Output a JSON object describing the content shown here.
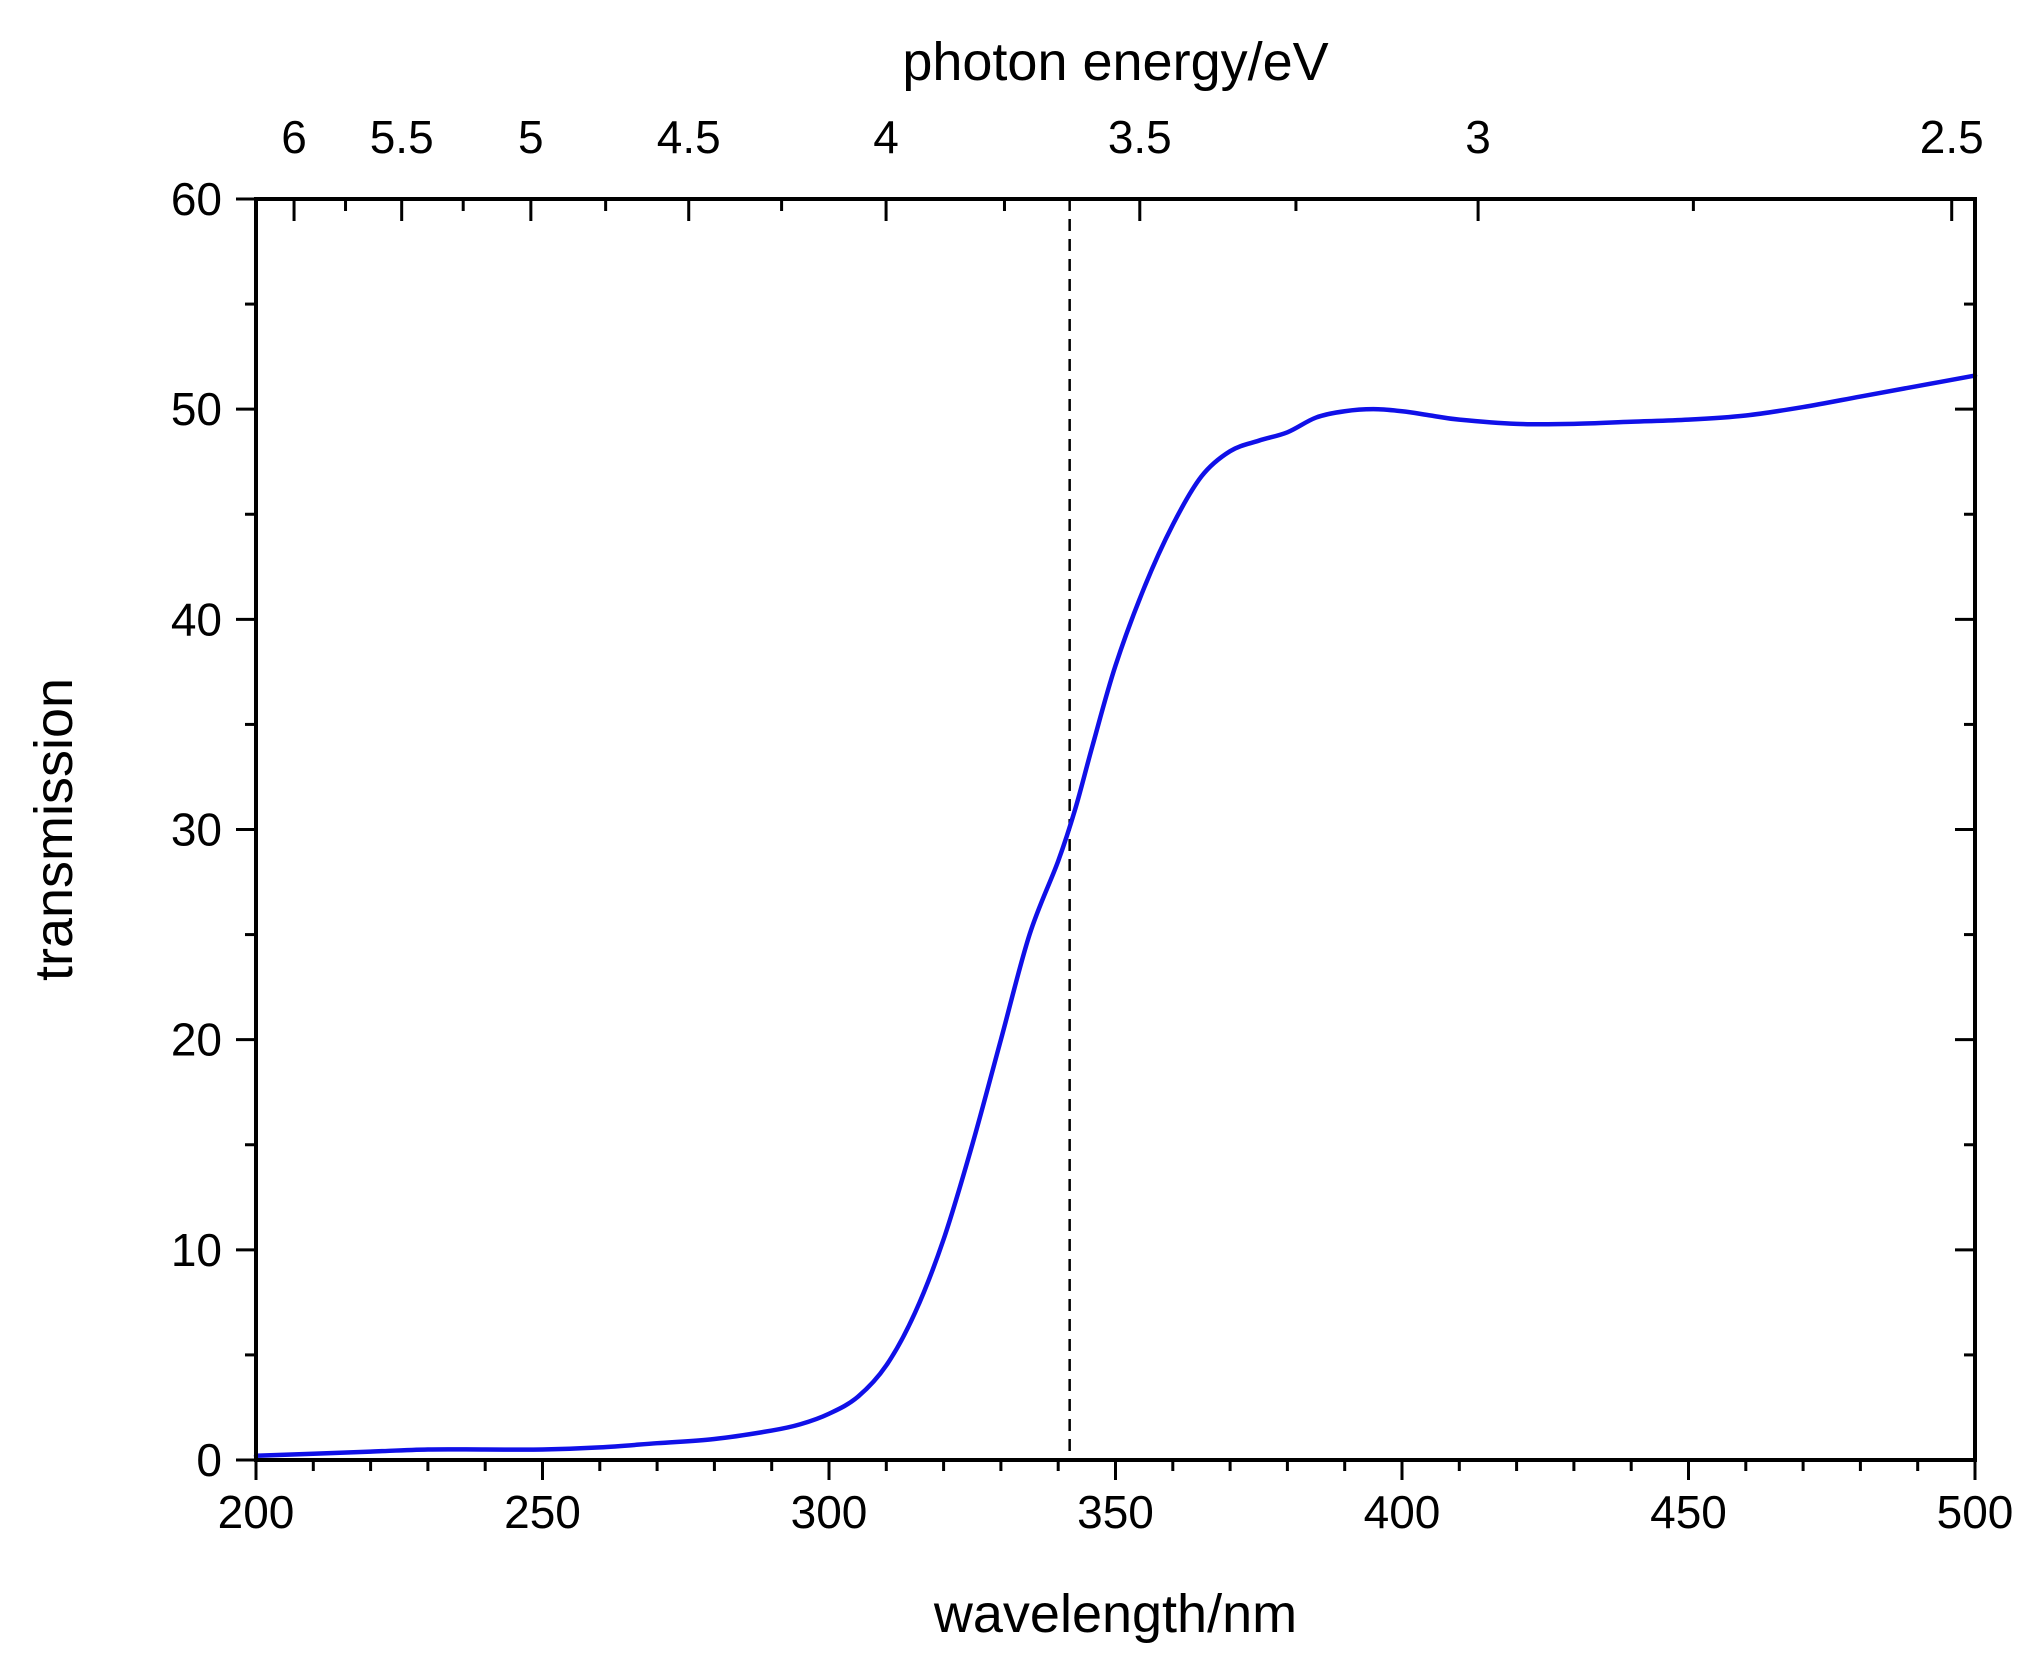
{
  "chart_data": {
    "type": "line",
    "xlabel": "wavelength/nm",
    "ylabel": "transmission",
    "top_xlabel": "photon energy/eV",
    "xlim": [
      200,
      500
    ],
    "ylim": [
      0,
      60
    ],
    "x_ticks": [
      "200",
      "250",
      "300",
      "350",
      "400",
      "450",
      "500"
    ],
    "y_ticks": [
      "0",
      "10",
      "20",
      "30",
      "40",
      "50",
      "60"
    ],
    "top_ticks": [
      {
        "label": "6",
        "energy_eV": 6.0
      },
      {
        "label": "5.5",
        "energy_eV": 5.5
      },
      {
        "label": "5",
        "energy_eV": 5.0
      },
      {
        "label": "4.5",
        "energy_eV": 4.5
      },
      {
        "label": "4",
        "energy_eV": 4.0
      },
      {
        "label": "3.5",
        "energy_eV": 3.5
      },
      {
        "label": "3",
        "energy_eV": 3.0
      },
      {
        "label": "2.5",
        "energy_eV": 2.5
      }
    ],
    "reference_line": {
      "x": 342,
      "style": "dashed",
      "color": "#000000"
    },
    "series": [
      {
        "name": "transmission",
        "color": "#1010e8",
        "x": [
          200,
          210,
          220,
          230,
          240,
          250,
          260,
          270,
          280,
          290,
          295,
          300,
          305,
          310,
          315,
          320,
          325,
          330,
          335,
          340,
          343,
          346,
          350,
          355,
          360,
          365,
          370,
          375,
          380,
          385,
          390,
          395,
          400,
          405,
          410,
          420,
          430,
          440,
          450,
          460,
          470,
          480,
          490,
          500
        ],
        "y": [
          0.2,
          0.3,
          0.4,
          0.5,
          0.5,
          0.5,
          0.6,
          0.8,
          1.0,
          1.4,
          1.7,
          2.2,
          3.0,
          4.5,
          7.0,
          10.5,
          15.0,
          20.0,
          25.0,
          28.5,
          31.0,
          34.0,
          37.8,
          41.5,
          44.5,
          46.8,
          48.0,
          48.5,
          48.9,
          49.6,
          49.9,
          50.0,
          49.9,
          49.7,
          49.5,
          49.3,
          49.3,
          49.4,
          49.5,
          49.7,
          50.1,
          50.6,
          51.1,
          51.6
        ]
      }
    ]
  }
}
